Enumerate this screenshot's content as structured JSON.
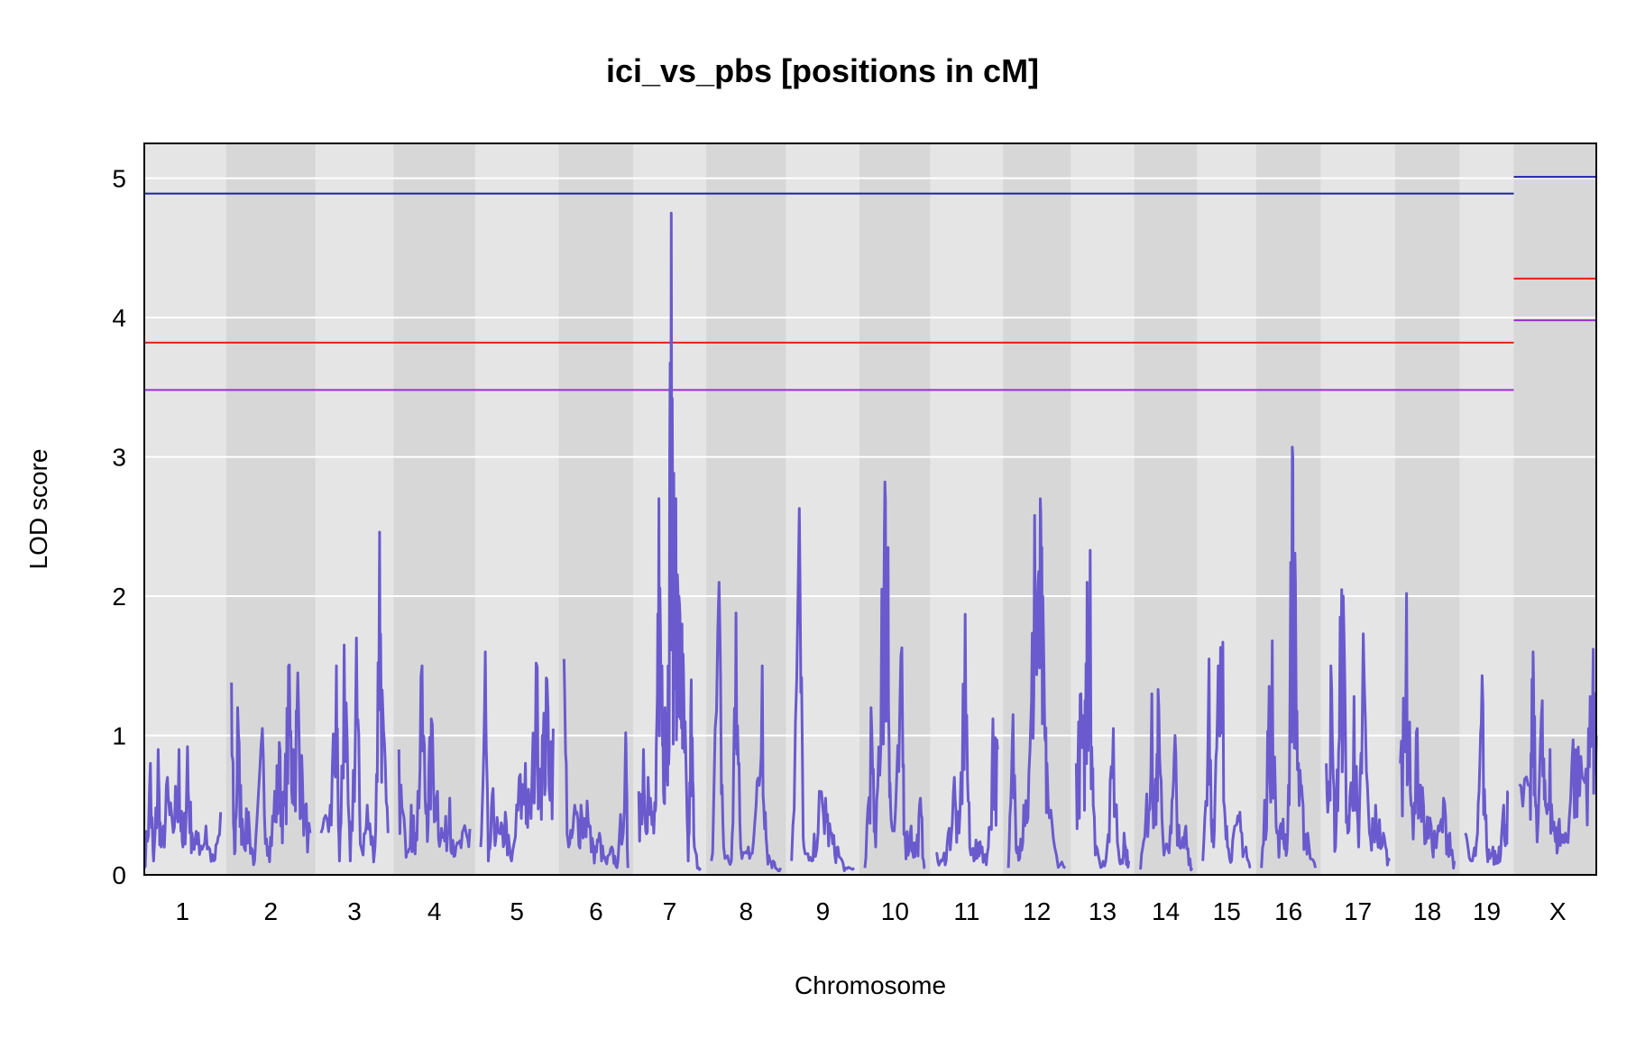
{
  "chart_data": {
    "type": "line",
    "title": "ici_vs_pbs [positions in cM]",
    "xlabel": "Chromosome",
    "ylabel": "LOD score",
    "ylim": [
      0,
      5.25
    ],
    "y_ticks": [
      0,
      1,
      2,
      3,
      4,
      5
    ],
    "grid": true,
    "line_color": "#6a5acd",
    "chromosomes": [
      {
        "name": "1",
        "lengths_cM": 99,
        "peaks": [
          [
            0,
            0.05
          ],
          [
            8,
            0.8
          ],
          [
            12,
            0.1
          ],
          [
            18,
            0.9
          ],
          [
            22,
            0.2
          ],
          [
            30,
            0.7
          ],
          [
            36,
            0.4
          ],
          [
            45,
            0.9
          ],
          [
            50,
            0.2
          ],
          [
            56,
            0.92
          ],
          [
            62,
            0.3
          ],
          [
            70,
            0.3
          ],
          [
            80,
            0.35
          ],
          [
            90,
            0.1
          ],
          [
            99,
            0.45
          ]
        ]
      },
      {
        "name": "2",
        "lengths_cM": 102,
        "peaks": [
          [
            0,
            1.38
          ],
          [
            4,
            0.15
          ],
          [
            8,
            1.2
          ],
          [
            14,
            0.4
          ],
          [
            22,
            0.45
          ],
          [
            30,
            0.1
          ],
          [
            40,
            1.05
          ],
          [
            48,
            0.2
          ],
          [
            56,
            0.6
          ],
          [
            62,
            0.95
          ],
          [
            68,
            0.5
          ],
          [
            74,
            1.5
          ],
          [
            80,
            0.9
          ],
          [
            86,
            1.45
          ],
          [
            92,
            0.7
          ],
          [
            102,
            0.3
          ]
        ]
      },
      {
        "name": "3",
        "lengths_cM": 87,
        "peaks": [
          [
            0,
            0.3
          ],
          [
            12,
            0.5
          ],
          [
            20,
            1.5
          ],
          [
            24,
            0.1
          ],
          [
            30,
            1.65
          ],
          [
            38,
            0.1
          ],
          [
            46,
            1.7
          ],
          [
            52,
            0.2
          ],
          [
            60,
            0.5
          ],
          [
            70,
            0.2
          ],
          [
            76,
            2.46
          ],
          [
            80,
            1.22
          ],
          [
            87,
            0.3
          ]
        ]
      },
      {
        "name": "4",
        "lengths_cM": 92,
        "peaks": [
          [
            0,
            0.9
          ],
          [
            8,
            0.3
          ],
          [
            16,
            0.5
          ],
          [
            22,
            0.3
          ],
          [
            30,
            1.5
          ],
          [
            36,
            0.5
          ],
          [
            42,
            1.12
          ],
          [
            50,
            0.6
          ],
          [
            58,
            0.3
          ],
          [
            66,
            0.55
          ],
          [
            74,
            0.2
          ],
          [
            84,
            0.33
          ],
          [
            92,
            0.33
          ]
        ]
      },
      {
        "name": "5",
        "lengths_cM": 94,
        "peaks": [
          [
            0,
            0.2
          ],
          [
            6,
            1.6
          ],
          [
            10,
            0.1
          ],
          [
            16,
            0.62
          ],
          [
            24,
            0.3
          ],
          [
            32,
            0.45
          ],
          [
            40,
            0.1
          ],
          [
            50,
            0.7
          ],
          [
            58,
            0.8
          ],
          [
            64,
            0.5
          ],
          [
            72,
            1.52
          ],
          [
            80,
            1.0
          ],
          [
            86,
            1.4
          ],
          [
            94,
            1.05
          ]
        ]
      },
      {
        "name": "6",
        "lengths_cM": 83,
        "peaks": [
          [
            0,
            1.55
          ],
          [
            6,
            0.2
          ],
          [
            14,
            0.5
          ],
          [
            22,
            0.5
          ],
          [
            30,
            0.53
          ],
          [
            38,
            0.2
          ],
          [
            46,
            0.3
          ],
          [
            54,
            0.1
          ],
          [
            62,
            0.2
          ],
          [
            70,
            0.1
          ],
          [
            80,
            1.02
          ],
          [
            83,
            0.05
          ]
        ]
      },
      {
        "name": "7",
        "lengths_cM": 80,
        "peaks": [
          [
            0,
            0.6
          ],
          [
            6,
            0.9
          ],
          [
            12,
            0.7
          ],
          [
            18,
            0.45
          ],
          [
            22,
            0.5
          ],
          [
            26,
            2.7
          ],
          [
            30,
            1.5
          ],
          [
            34,
            1.2
          ],
          [
            38,
            1.5
          ],
          [
            42,
            4.75
          ],
          [
            44,
            2.6
          ],
          [
            48,
            2.7
          ],
          [
            52,
            2.0
          ],
          [
            56,
            1.8
          ],
          [
            60,
            1.1
          ],
          [
            64,
            0.1
          ],
          [
            68,
            1.4
          ],
          [
            72,
            0.2
          ],
          [
            80,
            0.05
          ]
        ]
      },
      {
        "name": "8",
        "lengths_cM": 90,
        "peaks": [
          [
            0,
            0.1
          ],
          [
            10,
            2.1
          ],
          [
            16,
            0.2
          ],
          [
            26,
            0.1
          ],
          [
            32,
            1.88
          ],
          [
            38,
            0.2
          ],
          [
            48,
            0.2
          ],
          [
            58,
            0.5
          ],
          [
            66,
            1.5
          ],
          [
            72,
            0.2
          ],
          [
            80,
            0.1
          ],
          [
            90,
            0.05
          ]
        ]
      },
      {
        "name": "9",
        "lengths_cM": 81,
        "peaks": [
          [
            0,
            0.1
          ],
          [
            10,
            2.63
          ],
          [
            16,
            0.2
          ],
          [
            26,
            0.1
          ],
          [
            36,
            0.6
          ],
          [
            44,
            0.55
          ],
          [
            52,
            0.3
          ],
          [
            60,
            0.2
          ],
          [
            70,
            0.05
          ],
          [
            81,
            0.05
          ]
        ]
      },
      {
        "name": "10",
        "lengths_cM": 78,
        "peaks": [
          [
            0,
            0.05
          ],
          [
            8,
            1.2
          ],
          [
            14,
            0.2
          ],
          [
            22,
            2.05
          ],
          [
            26,
            2.82
          ],
          [
            30,
            2.35
          ],
          [
            34,
            0.4
          ],
          [
            40,
            0.5
          ],
          [
            48,
            1.63
          ],
          [
            52,
            0.3
          ],
          [
            60,
            0.35
          ],
          [
            66,
            0.2
          ],
          [
            72,
            0.55
          ],
          [
            78,
            0.05
          ]
        ]
      },
      {
        "name": "11",
        "lengths_cM": 80,
        "peaks": [
          [
            0,
            0.15
          ],
          [
            8,
            0.1
          ],
          [
            16,
            0.3
          ],
          [
            24,
            0.7
          ],
          [
            30,
            0.3
          ],
          [
            38,
            1.87
          ],
          [
            44,
            0.2
          ],
          [
            52,
            0.25
          ],
          [
            60,
            0.2
          ],
          [
            68,
            0.2
          ],
          [
            74,
            1.12
          ],
          [
            80,
            0.9
          ]
        ]
      },
      {
        "name": "12",
        "lengths_cM": 74,
        "peaks": [
          [
            0,
            0.05
          ],
          [
            6,
            1.15
          ],
          [
            12,
            0.2
          ],
          [
            20,
            0.5
          ],
          [
            28,
            0.9
          ],
          [
            34,
            2.58
          ],
          [
            38,
            2.0
          ],
          [
            42,
            2.6
          ],
          [
            46,
            1.5
          ],
          [
            50,
            0.8
          ],
          [
            60,
            0.2
          ],
          [
            74,
            0.05
          ]
        ]
      },
      {
        "name": "13",
        "lengths_cM": 68,
        "peaks": [
          [
            0,
            0.8
          ],
          [
            6,
            1.3
          ],
          [
            10,
            1.0
          ],
          [
            14,
            2.1
          ],
          [
            18,
            2.33
          ],
          [
            22,
            0.5
          ],
          [
            30,
            0.1
          ],
          [
            40,
            0.2
          ],
          [
            48,
            1.05
          ],
          [
            56,
            0.1
          ],
          [
            62,
            0.3
          ],
          [
            68,
            0.1
          ]
        ]
      },
      {
        "name": "14",
        "lengths_cM": 68,
        "peaks": [
          [
            0,
            0.05
          ],
          [
            8,
            0.4
          ],
          [
            16,
            1.3
          ],
          [
            20,
            0.5
          ],
          [
            24,
            1.33
          ],
          [
            30,
            0.3
          ],
          [
            40,
            0.35
          ],
          [
            46,
            1.0
          ],
          [
            52,
            0.2
          ],
          [
            60,
            0.35
          ],
          [
            68,
            0.05
          ]
        ]
      },
      {
        "name": "15",
        "lengths_cM": 62,
        "peaks": [
          [
            0,
            0.1
          ],
          [
            8,
            1.55
          ],
          [
            14,
            0.2
          ],
          [
            20,
            1.5
          ],
          [
            26,
            1.67
          ],
          [
            32,
            0.2
          ],
          [
            40,
            0.3
          ],
          [
            48,
            0.45
          ],
          [
            56,
            0.2
          ],
          [
            62,
            0.05
          ]
        ]
      },
      {
        "name": "16",
        "lengths_cM": 70,
        "peaks": [
          [
            0,
            0.05
          ],
          [
            8,
            1.03
          ],
          [
            14,
            1.68
          ],
          [
            20,
            0.3
          ],
          [
            28,
            0.4
          ],
          [
            34,
            0.3
          ],
          [
            40,
            3.07
          ],
          [
            44,
            2.1
          ],
          [
            48,
            0.8
          ],
          [
            54,
            0.5
          ],
          [
            60,
            0.3
          ],
          [
            70,
            0.05
          ]
        ]
      },
      {
        "name": "17",
        "lengths_cM": 82,
        "peaks": [
          [
            0,
            0.8
          ],
          [
            6,
            1.5
          ],
          [
            12,
            0.2
          ],
          [
            18,
            1.85
          ],
          [
            22,
            2.0
          ],
          [
            28,
            0.3
          ],
          [
            36,
            1.28
          ],
          [
            42,
            0.2
          ],
          [
            48,
            1.73
          ],
          [
            56,
            0.3
          ],
          [
            64,
            0.5
          ],
          [
            74,
            0.3
          ],
          [
            82,
            0.1
          ]
        ]
      },
      {
        "name": "18",
        "lengths_cM": 70,
        "peaks": [
          [
            0,
            0.8
          ],
          [
            8,
            2.02
          ],
          [
            14,
            0.5
          ],
          [
            22,
            1.05
          ],
          [
            30,
            0.5
          ],
          [
            40,
            0.35
          ],
          [
            48,
            0.3
          ],
          [
            56,
            0.55
          ],
          [
            64,
            0.3
          ],
          [
            70,
            0.1
          ]
        ]
      },
      {
        "name": "19",
        "lengths_cM": 56,
        "peaks": [
          [
            0,
            0.3
          ],
          [
            8,
            0.1
          ],
          [
            16,
            0.3
          ],
          [
            22,
            1.43
          ],
          [
            28,
            0.2
          ],
          [
            36,
            0.2
          ],
          [
            44,
            0.2
          ],
          [
            50,
            0.5
          ],
          [
            56,
            0.6
          ]
        ]
      },
      {
        "name": "X",
        "lengths_cM": 100,
        "peaks": [
          [
            0,
            0.65
          ],
          [
            14,
            0.65
          ],
          [
            18,
            1.6
          ],
          [
            22,
            0.5
          ],
          [
            30,
            1.25
          ],
          [
            34,
            0.5
          ],
          [
            40,
            0.9
          ],
          [
            46,
            0.3
          ],
          [
            52,
            0.4
          ],
          [
            60,
            0.3
          ],
          [
            70,
            0.97
          ],
          [
            80,
            0.85
          ],
          [
            90,
            1.05
          ],
          [
            96,
            1.62
          ],
          [
            100,
            1.0
          ]
        ]
      }
    ],
    "thresholds": {
      "autosome": [
        {
          "name": "blue",
          "value": 4.89,
          "color": "#1f1fb0"
        },
        {
          "name": "red",
          "value": 3.82,
          "color": "#e02020"
        },
        {
          "name": "purple",
          "value": 3.48,
          "color": "#9a30d0"
        }
      ],
      "X": [
        {
          "name": "blue",
          "value": 5.01,
          "color": "#1f1fb0"
        },
        {
          "name": "red",
          "value": 4.28,
          "color": "#e02020"
        },
        {
          "name": "purple",
          "value": 3.98,
          "color": "#9a30d0"
        }
      ]
    }
  }
}
